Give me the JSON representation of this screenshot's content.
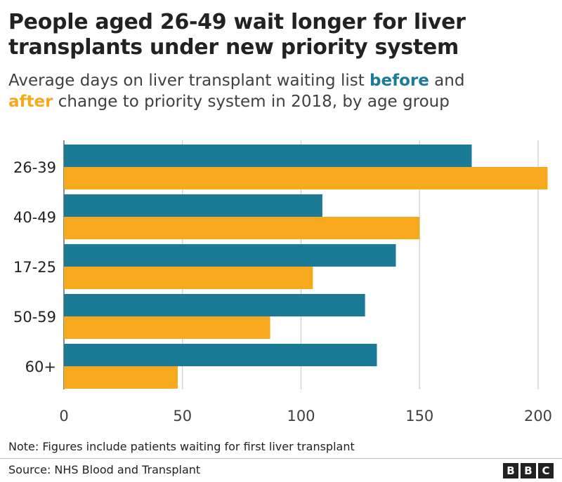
{
  "header": {
    "title": "People aged 26-49 wait longer for liver transplants under new priority system",
    "subtitle_pre": "Average days on liver transplant waiting list ",
    "subtitle_before": "before",
    "subtitle_mid": " and",
    "subtitle_after": "after",
    "subtitle_post": " change to priority system in 2018, by age group"
  },
  "colors": {
    "before": "#1b7a96",
    "after": "#f7a91e",
    "grid": "#cccccc",
    "axis": "#666666"
  },
  "chart_data": {
    "type": "bar",
    "orientation": "horizontal",
    "categories": [
      "26-39",
      "40-49",
      "17-25",
      "50-59",
      "60+"
    ],
    "series": [
      {
        "name": "before",
        "values": [
          172,
          109,
          140,
          127,
          132
        ]
      },
      {
        "name": "after",
        "values": [
          204,
          150,
          105,
          87,
          48
        ]
      }
    ],
    "xlim": [
      0,
      200
    ],
    "xticks": [
      0,
      50,
      100,
      150,
      200
    ],
    "grid": true
  },
  "footer": {
    "note": "Note: Figures include patients waiting for first liver transplant",
    "source": "Source: NHS Blood and Transplant",
    "logo_letters": [
      "B",
      "B",
      "C"
    ]
  }
}
